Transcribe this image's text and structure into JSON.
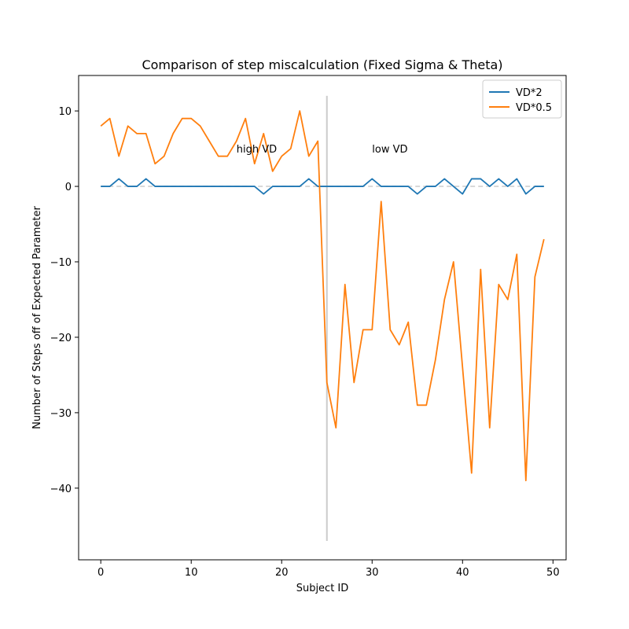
{
  "chart_data": {
    "type": "line",
    "title": "Comparison of step miscalculation (Fixed Sigma & Theta)",
    "xlabel": "Subject ID",
    "ylabel": "Number of Steps off of Expected Parameter",
    "xlim": [
      -2.45,
      51.45
    ],
    "ylim": [
      -49.5,
      14.7
    ],
    "xticks": [
      0,
      10,
      20,
      30,
      40,
      50
    ],
    "yticks": [
      10,
      0,
      -10,
      -20,
      -30,
      -40
    ],
    "ytick_labels": [
      "10",
      "0",
      "−10",
      "−20",
      "−30",
      "−40"
    ],
    "legend_position": "top-right",
    "grid": false,
    "series": [
      {
        "name": "VD*2",
        "color": "#1f77b4",
        "values": [
          0,
          0,
          1,
          0,
          0,
          1,
          0,
          0,
          0,
          0,
          0,
          0,
          0,
          0,
          0,
          0,
          0,
          0,
          -1,
          0,
          0,
          0,
          0,
          1,
          0,
          0,
          0,
          0,
          0,
          0,
          1,
          0,
          0,
          0,
          0,
          -1,
          0,
          0,
          1,
          0,
          -1,
          1,
          1,
          0,
          1,
          0,
          1,
          -1,
          0,
          0
        ]
      },
      {
        "name": "VD*0.5",
        "color": "#ff7f0e",
        "values": [
          8,
          9,
          4,
          8,
          7,
          7,
          3,
          4,
          7,
          9,
          9,
          8,
          6,
          4,
          4,
          6,
          9,
          3,
          7,
          2,
          4,
          5,
          10,
          4,
          6,
          -26,
          -32,
          -13,
          -26,
          -19,
          -19,
          -2,
          -19,
          -21,
          -18,
          -29,
          -29,
          -23,
          -15,
          -10,
          -24,
          -38,
          -11,
          -32,
          -13,
          -15,
          -9,
          -39,
          -12,
          -7
        ]
      }
    ],
    "reference_lines": {
      "zero_line": {
        "y": 0,
        "x_range": [
          0,
          49
        ],
        "color": "#cccccc",
        "style": "dashed"
      },
      "split_line": {
        "x": 25,
        "y_range": [
          -47,
          12
        ],
        "color": "#cccccc"
      }
    },
    "annotations": [
      {
        "text": "high VD",
        "x": 15,
        "y": 5
      },
      {
        "text": "low VD",
        "x": 30,
        "y": 5
      }
    ]
  }
}
